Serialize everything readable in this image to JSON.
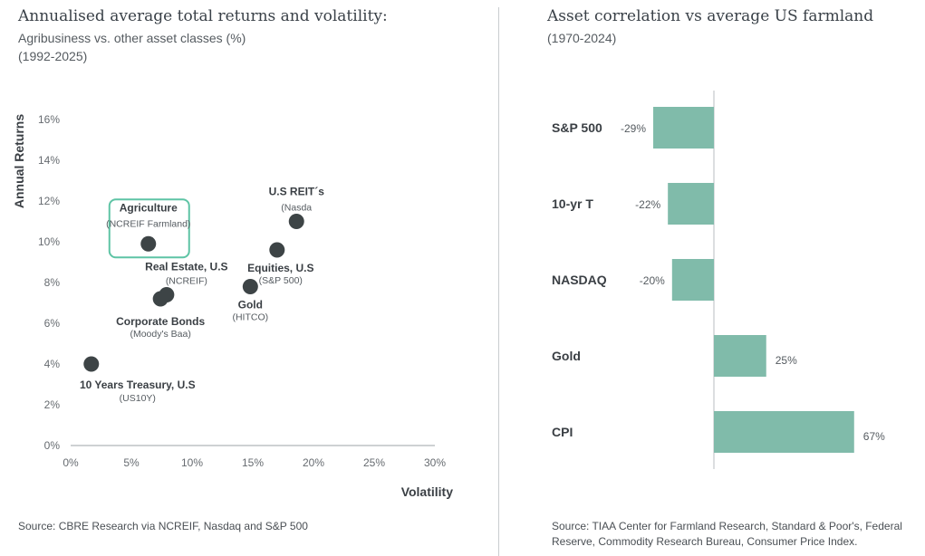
{
  "left": {
    "title": "Annualised average total returns and volatility:",
    "subtitle": "Agribusiness vs. other asset classes (%)",
    "period": "(1992-2025)",
    "source": "Source: CBRE Research via NCREIF, Nasdaq and S&P 500"
  },
  "right": {
    "title": "Asset correlation vs average US farmland",
    "period": "(1970-2024)",
    "source_line1": "Source: TIAA Center for Farmland Research, Standard & Poor's, Federal",
    "source_line2": "Reserve, Commodity Research Bureau, Consumer Price Index."
  },
  "colors": {
    "dot": "#3d4446",
    "highlight": "#5ec4a5",
    "bar": "#80bbaa",
    "axis": "#666b70"
  },
  "chart_data": [
    {
      "type": "scatter",
      "xlabel": "Volatility",
      "ylabel": "Annual Returns",
      "xlim": [
        0,
        30
      ],
      "ylim": [
        0,
        16
      ],
      "xticks": [
        "0%",
        "5%",
        "10%",
        "15%",
        "20%",
        "25%",
        "30%"
      ],
      "yticks": [
        "0%",
        "2%",
        "4%",
        "6%",
        "8%",
        "10%",
        "12%",
        "14%",
        "16%"
      ],
      "grid": false,
      "points": [
        {
          "name": "Agriculture",
          "sub": "(NCREIF Farmland)",
          "x": 6.4,
          "y": 9.9,
          "highlight": true
        },
        {
          "name": "U.S REIT´s",
          "sub": "(Nasda",
          "x": 18.6,
          "y": 11.0
        },
        {
          "name": "Equities, U.S",
          "sub": "(S&P 500)",
          "x": 17.0,
          "y": 9.6
        },
        {
          "name": "Real Estate, U.S",
          "sub": "(NCREIF)",
          "x": 7.9,
          "y": 7.4
        },
        {
          "name": "Corporate Bonds",
          "sub": "(Moody's Baa)",
          "x": 7.4,
          "y": 7.2
        },
        {
          "name": "Gold",
          "sub": "(HITCO)",
          "x": 14.8,
          "y": 7.8
        },
        {
          "name": "10 Years Treasury, U.S",
          "sub": "(US10Y)",
          "x": 1.7,
          "y": 4.0
        }
      ]
    },
    {
      "type": "bar",
      "orientation": "horizontal",
      "categories": [
        "S&P 500",
        "10-yr T",
        "NASDAQ",
        "Gold",
        "CPI"
      ],
      "values": [
        -29,
        -22,
        -20,
        25,
        67
      ],
      "labels": [
        "-29%",
        "-22%",
        "-20%",
        "25%",
        "67%"
      ]
    }
  ]
}
